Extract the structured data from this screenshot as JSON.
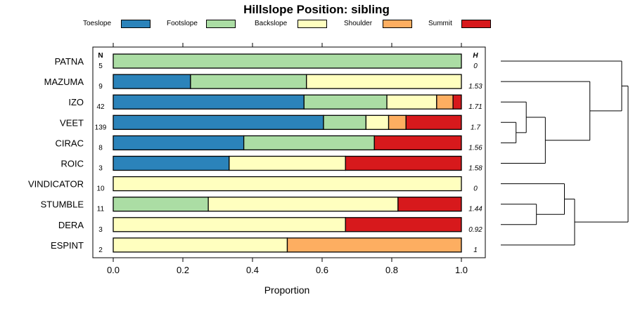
{
  "chart_data": {
    "type": "bar",
    "orientation": "horizontal",
    "stacked": true,
    "title": "Hillslope Position: sibling",
    "xlabel": "Proportion",
    "ylabel": "",
    "xlim": [
      -0.07,
      1.07
    ],
    "xticks": [
      "0.0",
      "0.2",
      "0.4",
      "0.6",
      "0.8",
      "1.0"
    ],
    "xtick_values": [
      0,
      0.2,
      0.4,
      0.6,
      0.8,
      1.0
    ],
    "n_header": "N",
    "h_header": "H",
    "series": [
      {
        "name": "Toeslope",
        "color": "#2b83ba",
        "values": [
          0,
          0.222,
          0.548,
          0.604,
          0.375,
          0.333,
          0,
          0,
          0,
          0
        ]
      },
      {
        "name": "Footslope",
        "color": "#abdda4",
        "values": [
          1.0,
          0.333,
          0.238,
          0.122,
          0.375,
          0,
          0,
          0.273,
          0,
          0
        ]
      },
      {
        "name": "Backslope",
        "color": "#ffffbf",
        "values": [
          0,
          0.445,
          0.143,
          0.065,
          0,
          0.334,
          1,
          0.545,
          0.667,
          0.5
        ]
      },
      {
        "name": "Shoulder",
        "color": "#fdae61",
        "values": [
          0,
          0,
          0.047,
          0.05,
          0,
          0,
          0,
          0,
          0,
          0.5
        ]
      },
      {
        "name": "Summit",
        "color": "#d7191c",
        "values": [
          0,
          0,
          0.024,
          0.159,
          0.25,
          0.333,
          0,
          0.182,
          0.333,
          0
        ]
      }
    ],
    "categories": [
      {
        "label": "PATNA",
        "n": "5",
        "h": "0"
      },
      {
        "label": "MAZUMA",
        "n": "9",
        "h": "1.53"
      },
      {
        "label": "IZO",
        "n": "42",
        "h": "1.71"
      },
      {
        "label": "VEET",
        "n": "139",
        "h": "1.7"
      },
      {
        "label": "CIRAC",
        "n": "8",
        "h": "1.56"
      },
      {
        "label": "ROIC",
        "n": "3",
        "h": "1.58"
      },
      {
        "label": "VINDICATOR",
        "n": "10",
        "h": "0"
      },
      {
        "label": "STUMBLE",
        "n": "11",
        "h": "1.44"
      },
      {
        "label": "DERA",
        "n": "3",
        "h": "0.92"
      },
      {
        "label": "ESPINT",
        "n": "2",
        "h": "1"
      }
    ],
    "dendrogram": {
      "description": "hierarchical clustering of profiles",
      "merges": [
        {
          "a": 3,
          "b": 4,
          "height": 0.12
        },
        {
          "a": 2,
          "b": "m0",
          "height": 0.2
        },
        {
          "a": "m1",
          "b": 5,
          "height": 0.35
        },
        {
          "a": 1,
          "b": "m2",
          "height": 0.7
        },
        {
          "a": 0,
          "b": "m3",
          "height": 0.95
        },
        {
          "a": 7,
          "b": 8,
          "height": 0.28
        },
        {
          "a": 6,
          "b": "m5",
          "height": 0.5
        },
        {
          "a": "m6",
          "b": 9,
          "height": 0.58
        },
        {
          "a": "m4",
          "b": "m7",
          "height": 1.0
        }
      ]
    }
  }
}
